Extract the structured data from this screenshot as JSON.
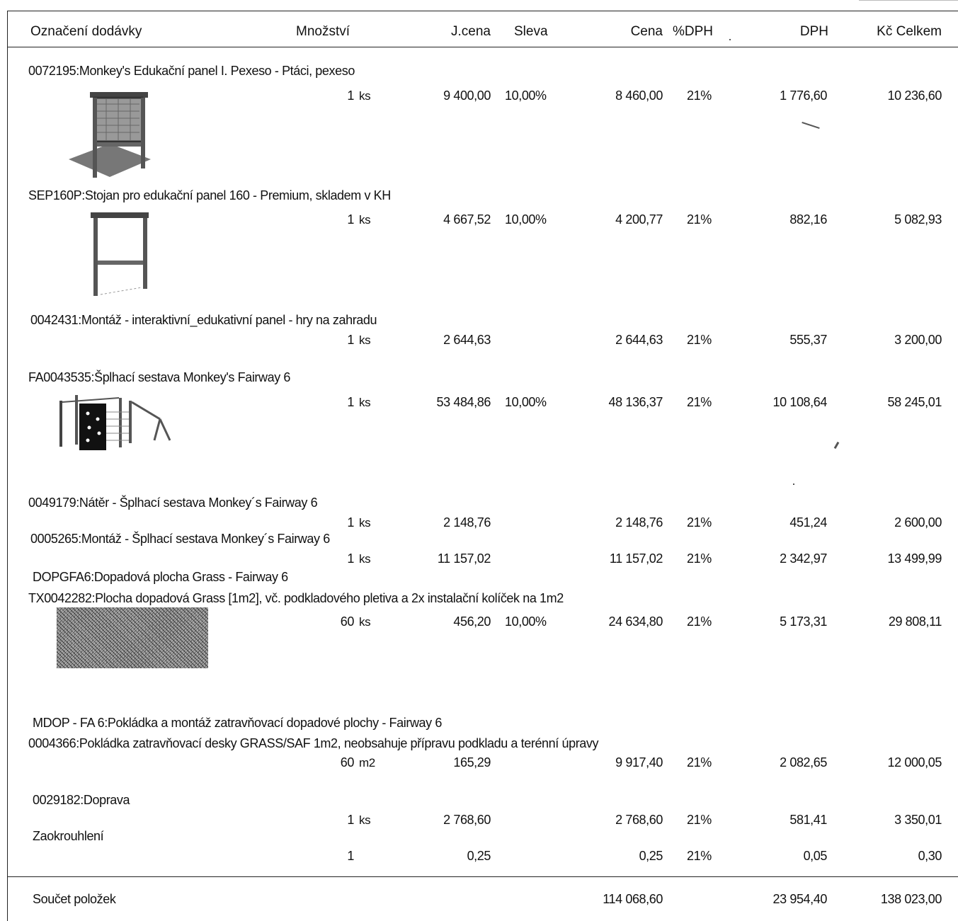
{
  "header": {
    "designation": "Označení dodávky",
    "quantity": "Množství",
    "unit_price": "J.cena",
    "discount": "Sleva",
    "price": "Cena",
    "vat_pct": "%DPH",
    "vat": "DPH",
    "total": "Kč Celkem"
  },
  "items": [
    {
      "name": "0072195:Monkey's Edukační panel I. Pexeso - Ptáci, pexeso",
      "qty": "1",
      "unit": "ks",
      "unit_price": "9 400,00",
      "discount": "10,00%",
      "price": "8 460,00",
      "vat_pct": "21%",
      "vat": "1 776,60",
      "total": "10 236,60"
    },
    {
      "name": "SEP160P:Stojan pro edukační panel 160 - Premium, skladem v KH",
      "qty": "1",
      "unit": "ks",
      "unit_price": "4 667,52",
      "discount": "10,00%",
      "price": "4 200,77",
      "vat_pct": "21%",
      "vat": "882,16",
      "total": "5 082,93"
    },
    {
      "name": "0042431:Montáž - interaktivní_edukativní panel - hry na zahradu",
      "qty": "1",
      "unit": "ks",
      "unit_price": "2 644,63",
      "discount": "",
      "price": "2 644,63",
      "vat_pct": "21%",
      "vat": "555,37",
      "total": "3 200,00"
    },
    {
      "name": "FA0043535:Šplhací sestava Monkey's Fairway 6",
      "qty": "1",
      "unit": "ks",
      "unit_price": "53 484,86",
      "discount": "10,00%",
      "price": "48 136,37",
      "vat_pct": "21%",
      "vat": "10 108,64",
      "total": "58 245,01"
    },
    {
      "name": "0049179:Nátěr - Šplhací sestava Monkey´s Fairway 6",
      "qty": "1",
      "unit": "ks",
      "unit_price": "2 148,76",
      "discount": "",
      "price": "2 148,76",
      "vat_pct": "21%",
      "vat": "451,24",
      "total": "2 600,00"
    },
    {
      "name": "0005265:Montáž - Šplhací sestava Monkey´s Fairway 6",
      "qty": "1",
      "unit": "ks",
      "unit_price": "11 157,02",
      "discount": "",
      "price": "11 157,02",
      "vat_pct": "21%",
      "vat": "2 342,97",
      "total": "13 499,99"
    },
    {
      "group": "DOPGFA6:Dopadová plocha Grass - Fairway 6",
      "name": "TX0042282:Plocha dopadová Grass [1m2], vč. podkladového pletiva a 2x instalační kolíček na 1m2",
      "qty": "60",
      "unit": "ks",
      "unit_price": "456,20",
      "discount": "10,00%",
      "price": "24 634,80",
      "vat_pct": "21%",
      "vat": "5 173,31",
      "total": "29 808,11"
    },
    {
      "group": "MDOP - FA 6:Pokládka a montáž zatravňovací dopadové plochy - Fairway 6",
      "name": "0004366:Pokládka zatravňovací desky GRASS/SAF 1m2, neobsahuje přípravu podkladu a terénní úpravy",
      "qty": "60",
      "unit": "m2",
      "unit_price": "165,29",
      "discount": "",
      "price": "9 917,40",
      "vat_pct": "21%",
      "vat": "2 082,65",
      "total": "12 000,05"
    },
    {
      "name": "0029182:Doprava",
      "qty": "1",
      "unit": "ks",
      "unit_price": "2 768,60",
      "discount": "",
      "price": "2 768,60",
      "vat_pct": "21%",
      "vat": "581,41",
      "total": "3 350,01"
    },
    {
      "name": "Zaokrouhlení",
      "qty": "1",
      "unit": "",
      "unit_price": "0,25",
      "discount": "",
      "price": "0,25",
      "vat_pct": "21%",
      "vat": "0,05",
      "total": "0,30"
    }
  ],
  "summary": {
    "label": "Součet položek",
    "price": "114 068,60",
    "vat": "23 954,40",
    "total": "138 023,00"
  },
  "images": [
    "educational-panel-picture",
    "panel-stand-picture",
    "climbing-set-picture",
    "grass-mat-picture"
  ]
}
